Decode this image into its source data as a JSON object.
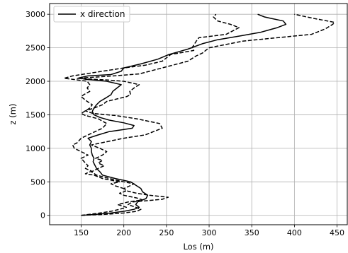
{
  "chart_data": {
    "type": "line",
    "xlabel": "Los (m)",
    "ylabel": "z (m)",
    "xlim": [
      113,
      462
    ],
    "ylim": [
      -140,
      3160
    ],
    "xticks": [
      150,
      200,
      250,
      300,
      350,
      400,
      450
    ],
    "yticks": [
      0,
      500,
      1000,
      1500,
      2000,
      2500,
      3000
    ],
    "grid": true,
    "legend": {
      "position": "top-left",
      "entries": [
        {
          "label": "x direction",
          "style": "solid"
        }
      ]
    },
    "colors": {
      "line": "#000000",
      "grid": "#b0b0b0",
      "axes": "#000000"
    },
    "series": [
      {
        "name": "x direction",
        "style": "solid",
        "points": [
          [
            150,
            0
          ],
          [
            168,
            15
          ],
          [
            185,
            35
          ],
          [
            200,
            60
          ],
          [
            212,
            90
          ],
          [
            218,
            120
          ],
          [
            214,
            160
          ],
          [
            216,
            200
          ],
          [
            226,
            250
          ],
          [
            228,
            300
          ],
          [
            222,
            350
          ],
          [
            220,
            400
          ],
          [
            214,
            450
          ],
          [
            208,
            500
          ],
          [
            190,
            550
          ],
          [
            175,
            600
          ],
          [
            172,
            650
          ],
          [
            168,
            700
          ],
          [
            166,
            750
          ],
          [
            164,
            800
          ],
          [
            165,
            850
          ],
          [
            163,
            900
          ],
          [
            162,
            950
          ],
          [
            162,
            1000
          ],
          [
            160,
            1050
          ],
          [
            162,
            1100
          ],
          [
            158,
            1150
          ],
          [
            170,
            1200
          ],
          [
            183,
            1250
          ],
          [
            200,
            1280
          ],
          [
            210,
            1300
          ],
          [
            212,
            1340
          ],
          [
            200,
            1380
          ],
          [
            183,
            1420
          ],
          [
            172,
            1460
          ],
          [
            165,
            1500
          ],
          [
            163,
            1550
          ],
          [
            165,
            1600
          ],
          [
            168,
            1650
          ],
          [
            172,
            1700
          ],
          [
            180,
            1760
          ],
          [
            185,
            1800
          ],
          [
            187,
            1850
          ],
          [
            192,
            1900
          ],
          [
            197,
            1950
          ],
          [
            180,
            2000
          ],
          [
            155,
            2030
          ],
          [
            147,
            2050
          ],
          [
            158,
            2080
          ],
          [
            185,
            2100
          ],
          [
            197,
            2150
          ],
          [
            200,
            2200
          ],
          [
            220,
            2260
          ],
          [
            240,
            2330
          ],
          [
            253,
            2400
          ],
          [
            275,
            2480
          ],
          [
            292,
            2560
          ],
          [
            310,
            2620
          ],
          [
            338,
            2680
          ],
          [
            360,
            2730
          ],
          [
            380,
            2800
          ],
          [
            390,
            2850
          ],
          [
            387,
            2900
          ],
          [
            372,
            2940
          ],
          [
            365,
            2960
          ],
          [
            357,
            3000
          ]
        ]
      },
      {
        "name": "",
        "style": "dashed",
        "points": [
          [
            150,
            0
          ],
          [
            178,
            15
          ],
          [
            200,
            35
          ],
          [
            215,
            60
          ],
          [
            220,
            90
          ],
          [
            214,
            120
          ],
          [
            205,
            160
          ],
          [
            210,
            200
          ],
          [
            245,
            240
          ],
          [
            252,
            270
          ],
          [
            230,
            300
          ],
          [
            215,
            330
          ],
          [
            205,
            360
          ],
          [
            200,
            400
          ],
          [
            207,
            440
          ],
          [
            212,
            470
          ],
          [
            200,
            500
          ],
          [
            183,
            550
          ],
          [
            168,
            600
          ],
          [
            162,
            650
          ],
          [
            170,
            700
          ],
          [
            177,
            740
          ],
          [
            170,
            780
          ],
          [
            175,
            820
          ],
          [
            167,
            850
          ],
          [
            175,
            900
          ],
          [
            180,
            950
          ],
          [
            172,
            1000
          ],
          [
            162,
            1050
          ],
          [
            173,
            1080
          ],
          [
            200,
            1150
          ],
          [
            225,
            1200
          ],
          [
            245,
            1300
          ],
          [
            242,
            1370
          ],
          [
            215,
            1440
          ],
          [
            190,
            1490
          ],
          [
            164,
            1520
          ],
          [
            155,
            1560
          ],
          [
            165,
            1600
          ],
          [
            175,
            1650
          ],
          [
            180,
            1700
          ],
          [
            203,
            1770
          ],
          [
            208,
            1800
          ],
          [
            207,
            1850
          ],
          [
            212,
            1900
          ],
          [
            218,
            1950
          ],
          [
            200,
            2000
          ],
          [
            180,
            2020
          ],
          [
            164,
            2030
          ],
          [
            145,
            2045
          ],
          [
            188,
            2080
          ],
          [
            218,
            2110
          ],
          [
            245,
            2200
          ],
          [
            275,
            2300
          ],
          [
            285,
            2380
          ],
          [
            292,
            2420
          ],
          [
            300,
            2500
          ],
          [
            340,
            2600
          ],
          [
            420,
            2700
          ],
          [
            436,
            2780
          ],
          [
            445,
            2850
          ],
          [
            447,
            2880
          ],
          [
            422,
            2940
          ],
          [
            400,
            3000
          ]
        ]
      },
      {
        "name": "",
        "style": "dashed",
        "points": [
          [
            150,
            0
          ],
          [
            160,
            15
          ],
          [
            172,
            35
          ],
          [
            185,
            60
          ],
          [
            195,
            90
          ],
          [
            203,
            120
          ],
          [
            193,
            160
          ],
          [
            205,
            200
          ],
          [
            222,
            230
          ],
          [
            215,
            260
          ],
          [
            200,
            300
          ],
          [
            195,
            330
          ],
          [
            202,
            360
          ],
          [
            200,
            400
          ],
          [
            190,
            440
          ],
          [
            185,
            470
          ],
          [
            195,
            500
          ],
          [
            175,
            550
          ],
          [
            165,
            600
          ],
          [
            155,
            620
          ],
          [
            162,
            660
          ],
          [
            155,
            700
          ],
          [
            158,
            740
          ],
          [
            155,
            780
          ],
          [
            150,
            850
          ],
          [
            158,
            900
          ],
          [
            150,
            950
          ],
          [
            142,
            1000
          ],
          [
            140,
            1050
          ],
          [
            145,
            1080
          ],
          [
            150,
            1150
          ],
          [
            158,
            1200
          ],
          [
            175,
            1300
          ],
          [
            180,
            1370
          ],
          [
            170,
            1440
          ],
          [
            155,
            1490
          ],
          [
            150,
            1520
          ],
          [
            155,
            1560
          ],
          [
            160,
            1600
          ],
          [
            163,
            1650
          ],
          [
            157,
            1700
          ],
          [
            150,
            1770
          ],
          [
            153,
            1800
          ],
          [
            160,
            1850
          ],
          [
            157,
            1900
          ],
          [
            160,
            1950
          ],
          [
            157,
            2000
          ],
          [
            140,
            2030
          ],
          [
            130,
            2045
          ],
          [
            140,
            2080
          ],
          [
            155,
            2110
          ],
          [
            175,
            2150
          ],
          [
            200,
            2200
          ],
          [
            225,
            2240
          ],
          [
            245,
            2300
          ],
          [
            255,
            2400
          ],
          [
            282,
            2460
          ],
          [
            280,
            2500
          ],
          [
            285,
            2600
          ],
          [
            288,
            2650
          ],
          [
            320,
            2700
          ],
          [
            335,
            2800
          ],
          [
            325,
            2850
          ],
          [
            310,
            2900
          ],
          [
            305,
            2960
          ],
          [
            308,
            3000
          ]
        ]
      }
    ]
  }
}
